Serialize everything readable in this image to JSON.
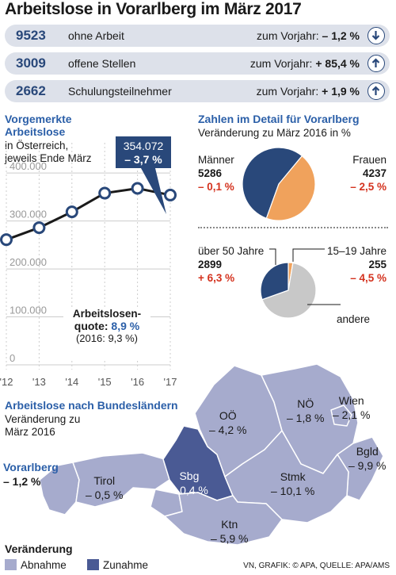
{
  "title": "Arbeitslose in Vorarlberg im März 2017",
  "stats": [
    {
      "value": "9523",
      "label": "ohne Arbeit",
      "change_label": "zum Vorjahr:",
      "change": "– 1,2 %",
      "icon": "arrow-down-icon"
    },
    {
      "value": "3009",
      "label": "offene Stellen",
      "change_label": "zum Vorjahr:",
      "change": "+ 85,4 %",
      "icon": "arrow-up-icon"
    },
    {
      "value": "2662",
      "label": "Schulungsteilnehmer",
      "change_label": "zum Vorjahr:",
      "change": "+ 1,9 %",
      "icon": "arrow-up-icon"
    }
  ],
  "colors": {
    "navy": "#29487a",
    "accent_blue": "#2b5fa8",
    "red": "#d4321e",
    "orange": "#f0a25c",
    "map_light": "#a6abcd",
    "map_dark": "#4a5a94",
    "grey": "#c8c8c8"
  },
  "line_section": {
    "title_line1": "Vorgemerkte",
    "title_line2": "Arbeitslose",
    "sub_line1": "in Österreich,",
    "sub_line2": "jeweils Ende März",
    "callout_value": "354.072",
    "callout_change": "– 3,7 %",
    "quote_line1": "Arbeitslosen-",
    "quote_label": "quote:",
    "quote_value": "8,9 %",
    "quote_prev": "(2016: 9,3 %)"
  },
  "chart_data": [
    {
      "type": "line",
      "x": [
        "'12",
        "'13",
        "'14",
        "'15",
        "'16",
        "'17"
      ],
      "values": [
        261000,
        286000,
        319000,
        358000,
        368000,
        354072
      ],
      "ylim": [
        0,
        430000
      ],
      "yticks": [
        "400.000",
        "300.000",
        "200.000",
        "100.000",
        "0"
      ],
      "ytick_values": [
        400000,
        300000,
        200000,
        100000,
        0
      ],
      "grid": true
    },
    {
      "type": "pie",
      "title": "Zahlen im Detail für Vorarlberg",
      "subtitle": "Veränderung zu März 2016 in %",
      "slices": [
        {
          "label": "Männer",
          "value": 5286,
          "change": "– 0,1 %",
          "color": "#29487a"
        },
        {
          "label": "Frauen",
          "value": 4237,
          "change": "– 2,5 %",
          "color": "#f0a25c"
        }
      ]
    },
    {
      "type": "pie",
      "slices": [
        {
          "label": "15–19 Jahre",
          "value": 255,
          "change": "– 4,5 %",
          "color": "#f0a25c"
        },
        {
          "label": "andere",
          "value": 6369,
          "change": "",
          "color": "#c8c8c8"
        },
        {
          "label": "über 50 Jahre",
          "value": 2899,
          "change": "+ 6,3 %",
          "color": "#29487a"
        }
      ]
    }
  ],
  "pie1_labels": {
    "m_label": "Männer",
    "m_value": "5286",
    "m_change": "– 0,1 %",
    "f_label": "Frauen",
    "f_value": "4237",
    "f_change": "– 2,5 %"
  },
  "pie2_labels": {
    "o_label": "über 50 Jahre",
    "o_value": "2899",
    "o_change": "+ 6,3 %",
    "y_label": "15–19 Jahre",
    "y_value": "255",
    "y_change": "– 4,5 %",
    "a_label": "andere"
  },
  "map_section": {
    "title": "Arbeitslose nach Bundesländern",
    "sub_line1": "Veränderung zu",
    "sub_line2": "März 2016",
    "states": [
      {
        "name": "Vorarlberg",
        "change": "– 1,2 %"
      },
      {
        "name": "Tirol",
        "change": "– 0,5 %"
      },
      {
        "name": "Sbg",
        "change": "+ 0,4 %"
      },
      {
        "name": "OÖ",
        "change": "– 4,2 %"
      },
      {
        "name": "NÖ",
        "change": "– 1,8 %"
      },
      {
        "name": "Wien",
        "change": "– 2,1 %"
      },
      {
        "name": "Bgld",
        "change": "– 9,9 %"
      },
      {
        "name": "Stmk",
        "change": "– 10,1 %"
      },
      {
        "name": "Ktn",
        "change": "– 5,9 %"
      }
    ],
    "legend_title": "Veränderung",
    "legend_decrease": "Abnahme",
    "legend_increase": "Zunahme"
  },
  "credit": "VN, GRAFIK: © APA, QUELLE: APA/AMS"
}
